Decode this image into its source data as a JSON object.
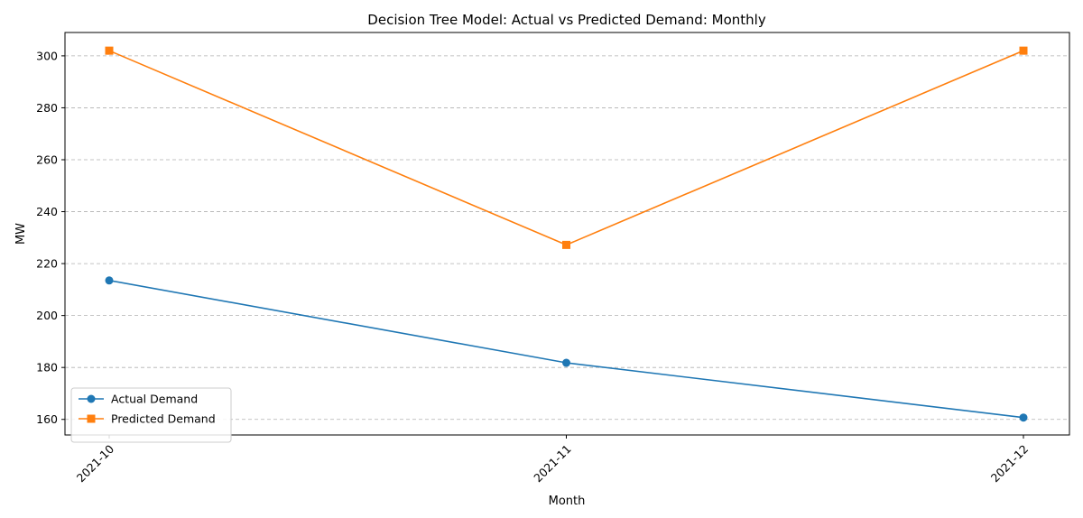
{
  "chart_data": {
    "type": "line",
    "title": "Decision Tree Model: Actual vs Predicted Demand: Monthly",
    "xlabel": "Month",
    "ylabel": "MW",
    "categories": [
      "2021-10",
      "2021-11",
      "2021-12"
    ],
    "series": [
      {
        "name": "Actual Demand",
        "values": [
          213.5,
          181.8,
          160.7
        ],
        "color": "#1f77b4",
        "marker": "circle"
      },
      {
        "name": "Predicted Demand",
        "values": [
          302.0,
          227.2,
          302.0
        ],
        "color": "#ff7f0e",
        "marker": "square"
      }
    ],
    "ylim": [
      154.0,
      309.0
    ],
    "yticks": [
      160,
      180,
      200,
      220,
      240,
      260,
      280,
      300
    ],
    "grid": "y-dashed",
    "legend_position": "lower-left"
  }
}
